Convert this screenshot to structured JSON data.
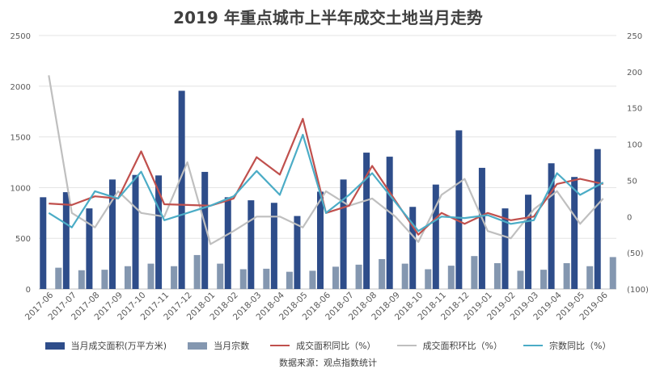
{
  "chart_data": {
    "type": "bar",
    "title": "2019 年重点城市上半年成交土地当月走势",
    "categories": [
      "2017-06",
      "2017-07",
      "2017-08",
      "2017-09",
      "2017-10",
      "2017-11",
      "2017-12",
      "2018-01",
      "2018-02",
      "2018-03",
      "2018-04",
      "2018-05",
      "2018-06",
      "2018-07",
      "2018-08",
      "2018-09",
      "2018-10",
      "2018-11",
      "2018-12",
      "2019-01",
      "2019-02",
      "2019-03",
      "2019-04",
      "2019-05",
      "2019-06"
    ],
    "y_left": {
      "ylim": [
        0,
        2500
      ],
      "ticks": [
        "0",
        "500",
        "1000",
        "1500",
        "2000",
        "2500"
      ]
    },
    "y_right": {
      "ylim": [
        -100,
        250
      ],
      "ticks": [
        "(100)",
        "(50)",
        "0",
        "50",
        "100",
        "150",
        "200",
        "250"
      ]
    },
    "series": [
      {
        "name": "当月成交面积(万平方米)",
        "type": "bar",
        "axis": "left",
        "color": "#2e4d8a",
        "values": [
          905,
          955,
          795,
          1080,
          1125,
          1120,
          1955,
          1155,
          905,
          875,
          850,
          720,
          960,
          1080,
          1345,
          1305,
          810,
          1030,
          1565,
          1195,
          795,
          930,
          1240,
          1105,
          1380
        ]
      },
      {
        "name": "当月宗数",
        "type": "bar",
        "axis": "left",
        "color": "#8497b0",
        "values": [
          210,
          185,
          190,
          225,
          250,
          225,
          335,
          250,
          195,
          200,
          170,
          180,
          220,
          240,
          295,
          250,
          195,
          230,
          325,
          255,
          180,
          190,
          255,
          225,
          315
        ]
      },
      {
        "name": "成交面积同比（%）",
        "type": "line",
        "axis": "right",
        "color": "#c0504d",
        "values": [
          18,
          16,
          28,
          25,
          90,
          17,
          16,
          15,
          25,
          82,
          58,
          135,
          5,
          15,
          70,
          22,
          -25,
          5,
          -10,
          5,
          -5,
          0,
          45,
          52,
          45
        ]
      },
      {
        "name": "成交面积环比（%）",
        "type": "line",
        "axis": "right",
        "color": "#bfbfbf",
        "values": [
          195,
          5,
          -15,
          35,
          5,
          0,
          75,
          -38,
          -20,
          0,
          0,
          -15,
          35,
          15,
          25,
          0,
          -35,
          30,
          52,
          -20,
          -30,
          10,
          35,
          -10,
          25
        ]
      },
      {
        "name": "宗数同比（%）",
        "type": "line",
        "axis": "right",
        "color": "#4bacc6",
        "values": [
          5,
          -15,
          35,
          25,
          62,
          -5,
          5,
          15,
          28,
          63,
          30,
          113,
          5,
          30,
          60,
          20,
          -20,
          0,
          -2,
          2,
          -10,
          -5,
          60,
          30,
          47
        ]
      }
    ]
  },
  "source": "数据来源：观点指数统计"
}
